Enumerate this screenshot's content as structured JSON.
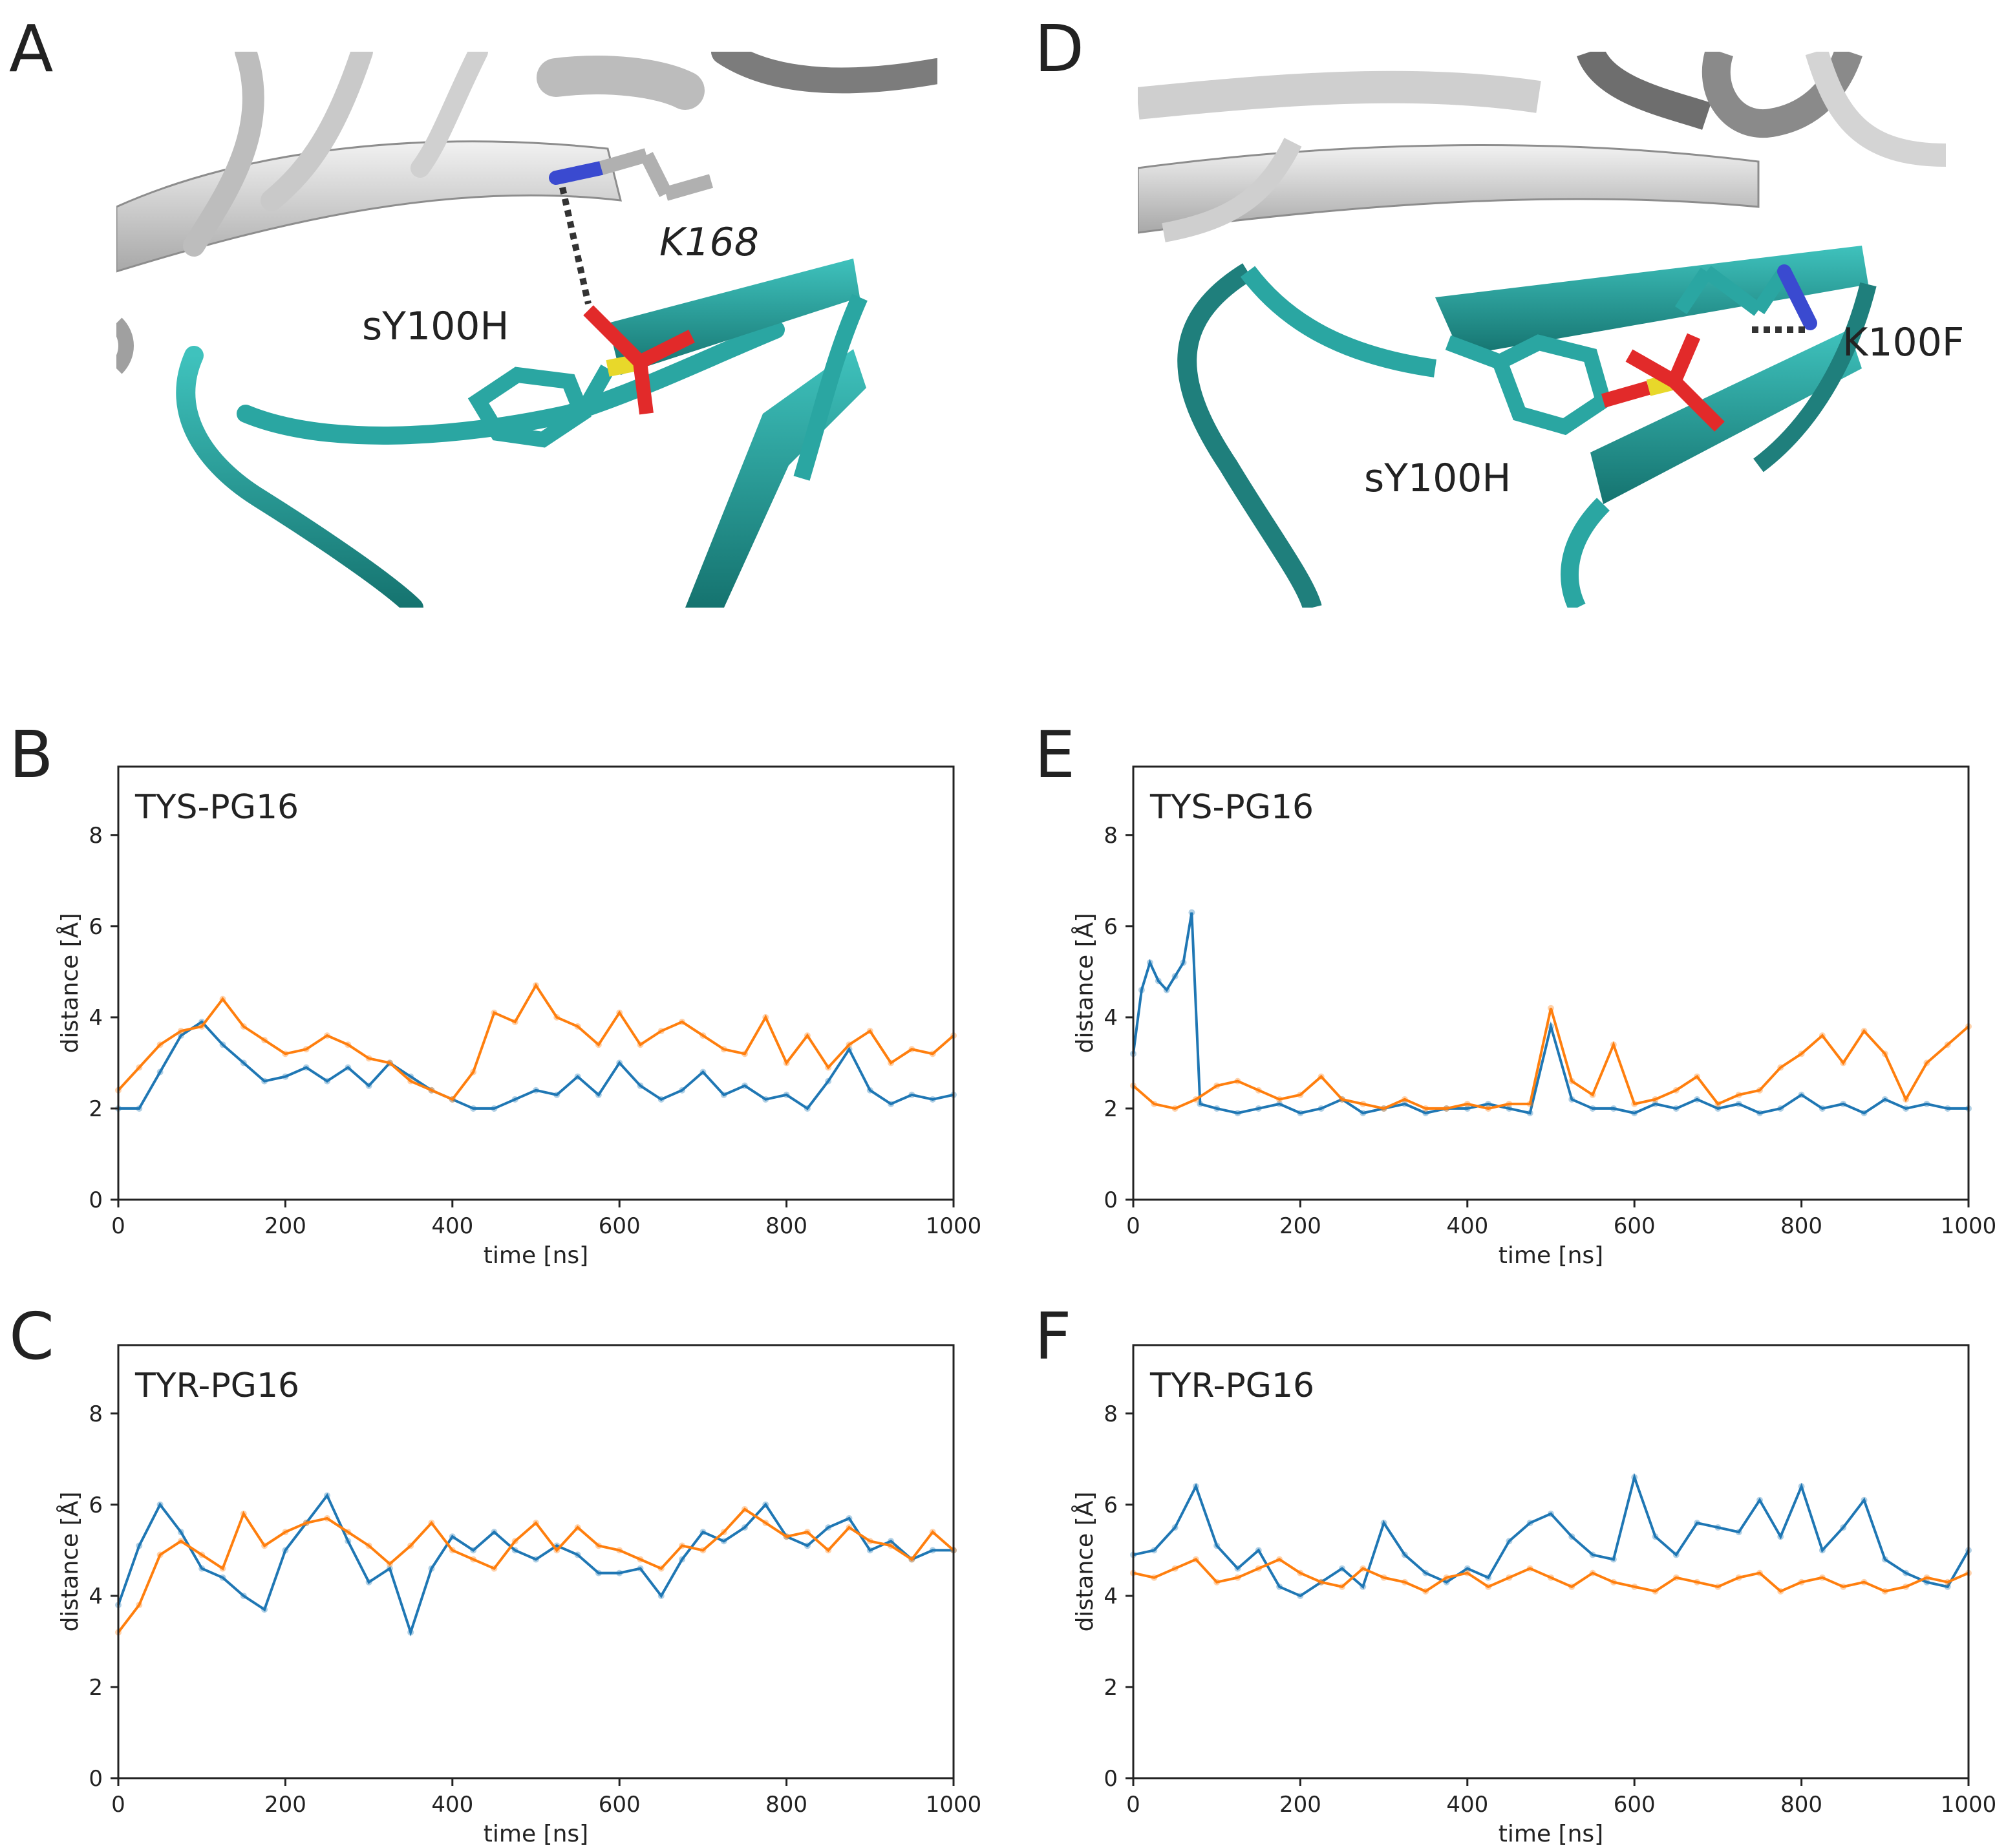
{
  "panel_letters": {
    "A": "A",
    "B": "B",
    "C": "C",
    "D": "D",
    "E": "E",
    "F": "F"
  },
  "colors": {
    "blue": "#1f77b4",
    "orange": "#ff7f0e",
    "teal": "#2aa6a2",
    "teal_dark": "#1f7f7c",
    "gray_ribbon": "#d4d4d4"
  },
  "molecule_A": {
    "residue_label": "sY100H",
    "contact_label": "K168"
  },
  "molecule_D": {
    "residue_label": "sY100H",
    "contact_label": "K100F"
  },
  "chart_data": [
    {
      "id": "B",
      "type": "line",
      "title": "TYS-PG16",
      "xlabel": "time [ns]",
      "ylabel": "distance [Å]",
      "xlim": [
        0,
        1000
      ],
      "ylim": [
        0,
        9.5
      ],
      "xticks": [
        0,
        200,
        400,
        600,
        800,
        1000
      ],
      "yticks": [
        0,
        2,
        4,
        6,
        8
      ],
      "grid": false,
      "series": [
        {
          "color": "#1f77b4",
          "x": [
            0,
            25,
            50,
            75,
            100,
            125,
            150,
            175,
            200,
            225,
            250,
            275,
            300,
            325,
            350,
            375,
            400,
            425,
            450,
            475,
            500,
            525,
            550,
            575,
            600,
            625,
            650,
            675,
            700,
            725,
            750,
            775,
            800,
            825,
            850,
            875,
            900,
            925,
            950,
            975,
            1000
          ],
          "values": [
            2.0,
            2.0,
            2.8,
            3.6,
            3.9,
            3.4,
            3.0,
            2.6,
            2.7,
            2.9,
            2.6,
            2.9,
            2.5,
            3.0,
            2.7,
            2.4,
            2.2,
            2.0,
            2.0,
            2.2,
            2.4,
            2.3,
            2.7,
            2.3,
            3.0,
            2.5,
            2.2,
            2.4,
            2.8,
            2.3,
            2.5,
            2.2,
            2.3,
            2.0,
            2.6,
            3.3,
            2.4,
            2.1,
            2.3,
            2.2,
            2.3
          ]
        },
        {
          "color": "#ff7f0e",
          "x": [
            0,
            25,
            50,
            75,
            100,
            125,
            150,
            175,
            200,
            225,
            250,
            275,
            300,
            325,
            350,
            375,
            400,
            425,
            450,
            475,
            500,
            525,
            550,
            575,
            600,
            625,
            650,
            675,
            700,
            725,
            750,
            775,
            800,
            825,
            850,
            875,
            900,
            925,
            950,
            975,
            1000
          ],
          "values": [
            2.4,
            2.9,
            3.4,
            3.7,
            3.8,
            4.4,
            3.8,
            3.5,
            3.2,
            3.3,
            3.6,
            3.4,
            3.1,
            3.0,
            2.6,
            2.4,
            2.2,
            2.8,
            4.1,
            3.9,
            4.7,
            4.0,
            3.8,
            3.4,
            4.1,
            3.4,
            3.7,
            3.9,
            3.6,
            3.3,
            3.2,
            4.0,
            3.0,
            3.6,
            2.9,
            3.4,
            3.7,
            3.0,
            3.3,
            3.2,
            3.6
          ]
        }
      ]
    },
    {
      "id": "C",
      "type": "line",
      "title": "TYR-PG16",
      "xlabel": "time [ns]",
      "ylabel": "distance [Å]",
      "xlim": [
        0,
        1000
      ],
      "ylim": [
        0,
        9.5
      ],
      "xticks": [
        0,
        200,
        400,
        600,
        800,
        1000
      ],
      "yticks": [
        0,
        2,
        4,
        6,
        8
      ],
      "grid": false,
      "series": [
        {
          "color": "#1f77b4",
          "x": [
            0,
            25,
            50,
            75,
            100,
            125,
            150,
            175,
            200,
            225,
            250,
            275,
            300,
            325,
            350,
            375,
            400,
            425,
            450,
            475,
            500,
            525,
            550,
            575,
            600,
            625,
            650,
            675,
            700,
            725,
            750,
            775,
            800,
            825,
            850,
            875,
            900,
            925,
            950,
            975,
            1000
          ],
          "values": [
            3.8,
            5.1,
            6.0,
            5.4,
            4.6,
            4.4,
            4.0,
            3.7,
            5.0,
            5.6,
            6.2,
            5.2,
            4.3,
            4.6,
            3.2,
            4.6,
            5.3,
            5.0,
            5.4,
            5.0,
            4.8,
            5.1,
            4.9,
            4.5,
            4.5,
            4.6,
            4.0,
            4.8,
            5.4,
            5.2,
            5.5,
            6.0,
            5.3,
            5.1,
            5.5,
            5.7,
            5.0,
            5.2,
            4.8,
            5.0,
            5.0
          ]
        },
        {
          "color": "#ff7f0e",
          "x": [
            0,
            25,
            50,
            75,
            100,
            125,
            150,
            175,
            200,
            225,
            250,
            275,
            300,
            325,
            350,
            375,
            400,
            425,
            450,
            475,
            500,
            525,
            550,
            575,
            600,
            625,
            650,
            675,
            700,
            725,
            750,
            775,
            800,
            825,
            850,
            875,
            900,
            925,
            950,
            975,
            1000
          ],
          "values": [
            3.2,
            3.8,
            4.9,
            5.2,
            4.9,
            4.6,
            5.8,
            5.1,
            5.4,
            5.6,
            5.7,
            5.4,
            5.1,
            4.7,
            5.1,
            5.6,
            5.0,
            4.8,
            4.6,
            5.2,
            5.6,
            5.0,
            5.5,
            5.1,
            5.0,
            4.8,
            4.6,
            5.1,
            5.0,
            5.4,
            5.9,
            5.6,
            5.3,
            5.4,
            5.0,
            5.5,
            5.2,
            5.1,
            4.8,
            5.4,
            5.0
          ]
        }
      ]
    },
    {
      "id": "E",
      "type": "line",
      "title": "TYS-PG16",
      "xlabel": "time [ns]",
      "ylabel": "distance [Å]",
      "xlim": [
        0,
        1000
      ],
      "ylim": [
        0,
        9.5
      ],
      "xticks": [
        0,
        200,
        400,
        600,
        800,
        1000
      ],
      "yticks": [
        0,
        2,
        4,
        6,
        8
      ],
      "grid": false,
      "series": [
        {
          "color": "#1f77b4",
          "x": [
            0,
            10,
            20,
            30,
            40,
            50,
            60,
            70,
            80,
            100,
            125,
            150,
            175,
            200,
            225,
            250,
            275,
            300,
            325,
            350,
            375,
            400,
            425,
            450,
            475,
            500,
            525,
            550,
            575,
            600,
            625,
            650,
            675,
            700,
            725,
            750,
            775,
            800,
            825,
            850,
            875,
            900,
            925,
            950,
            975,
            1000
          ],
          "values": [
            3.2,
            4.6,
            5.2,
            4.8,
            4.6,
            4.9,
            5.2,
            6.3,
            2.1,
            2.0,
            1.9,
            2.0,
            2.1,
            1.9,
            2.0,
            2.2,
            1.9,
            2.0,
            2.1,
            1.9,
            2.0,
            2.0,
            2.1,
            2.0,
            1.9,
            3.8,
            2.2,
            2.0,
            2.0,
            1.9,
            2.1,
            2.0,
            2.2,
            2.0,
            2.1,
            1.9,
            2.0,
            2.3,
            2.0,
            2.1,
            1.9,
            2.2,
            2.0,
            2.1,
            2.0,
            2.0
          ]
        },
        {
          "color": "#ff7f0e",
          "x": [
            0,
            25,
            50,
            75,
            100,
            125,
            150,
            175,
            200,
            225,
            250,
            275,
            300,
            325,
            350,
            375,
            400,
            425,
            450,
            475,
            500,
            525,
            550,
            575,
            600,
            625,
            650,
            675,
            700,
            725,
            750,
            775,
            800,
            825,
            850,
            875,
            900,
            925,
            950,
            975,
            1000
          ],
          "values": [
            2.5,
            2.1,
            2.0,
            2.2,
            2.5,
            2.6,
            2.4,
            2.2,
            2.3,
            2.7,
            2.2,
            2.1,
            2.0,
            2.2,
            2.0,
            2.0,
            2.1,
            2.0,
            2.1,
            2.1,
            4.2,
            2.6,
            2.3,
            3.4,
            2.1,
            2.2,
            2.4,
            2.7,
            2.1,
            2.3,
            2.4,
            2.9,
            3.2,
            3.6,
            3.0,
            3.7,
            3.2,
            2.2,
            3.0,
            3.4,
            3.8
          ]
        }
      ]
    },
    {
      "id": "F",
      "type": "line",
      "title": "TYR-PG16",
      "xlabel": "time [ns]",
      "ylabel": "distance [Å]",
      "xlim": [
        0,
        1000
      ],
      "ylim": [
        0,
        9.5
      ],
      "xticks": [
        0,
        200,
        400,
        600,
        800,
        1000
      ],
      "yticks": [
        0,
        2,
        4,
        6,
        8
      ],
      "grid": false,
      "series": [
        {
          "color": "#1f77b4",
          "x": [
            0,
            25,
            50,
            75,
            100,
            125,
            150,
            175,
            200,
            225,
            250,
            275,
            300,
            325,
            350,
            375,
            400,
            425,
            450,
            475,
            500,
            525,
            550,
            575,
            600,
            625,
            650,
            675,
            700,
            725,
            750,
            775,
            800,
            825,
            850,
            875,
            900,
            925,
            950,
            975,
            1000
          ],
          "values": [
            4.9,
            5.0,
            5.5,
            6.4,
            5.1,
            4.6,
            5.0,
            4.2,
            4.0,
            4.3,
            4.6,
            4.2,
            5.6,
            4.9,
            4.5,
            4.3,
            4.6,
            4.4,
            5.2,
            5.6,
            5.8,
            5.3,
            4.9,
            4.8,
            6.6,
            5.3,
            4.9,
            5.6,
            5.5,
            5.4,
            6.1,
            5.3,
            6.4,
            5.0,
            5.5,
            6.1,
            4.8,
            4.5,
            4.3,
            4.2,
            5.0
          ]
        },
        {
          "color": "#ff7f0e",
          "x": [
            0,
            25,
            50,
            75,
            100,
            125,
            150,
            175,
            200,
            225,
            250,
            275,
            300,
            325,
            350,
            375,
            400,
            425,
            450,
            475,
            500,
            525,
            550,
            575,
            600,
            625,
            650,
            675,
            700,
            725,
            750,
            775,
            800,
            825,
            850,
            875,
            900,
            925,
            950,
            975,
            1000
          ],
          "values": [
            4.5,
            4.4,
            4.6,
            4.8,
            4.3,
            4.4,
            4.6,
            4.8,
            4.5,
            4.3,
            4.2,
            4.6,
            4.4,
            4.3,
            4.1,
            4.4,
            4.5,
            4.2,
            4.4,
            4.6,
            4.4,
            4.2,
            4.5,
            4.3,
            4.2,
            4.1,
            4.4,
            4.3,
            4.2,
            4.4,
            4.5,
            4.1,
            4.3,
            4.4,
            4.2,
            4.3,
            4.1,
            4.2,
            4.4,
            4.3,
            4.5
          ]
        }
      ]
    }
  ]
}
